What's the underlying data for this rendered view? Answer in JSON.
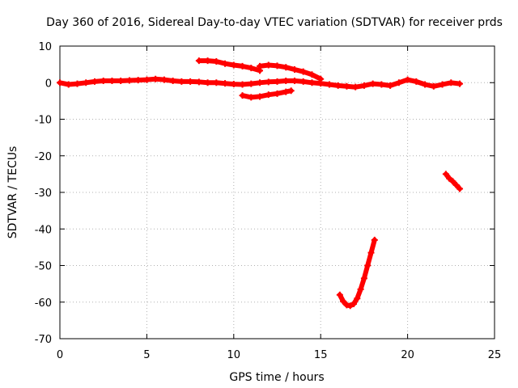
{
  "chart_data": {
    "type": "scatter",
    "title": "Day 360 of 2016, Sidereal Day-to-day VTEC variation (SDTVAR) for receiver prds",
    "xlabel": "GPS time / hours",
    "ylabel": "SDTVAR / TECUs",
    "xlim": [
      0,
      25
    ],
    "ylim": [
      -70,
      10
    ],
    "xticks": [
      0,
      5,
      10,
      15,
      20,
      25
    ],
    "yticks": [
      -70,
      -60,
      -50,
      -40,
      -30,
      -20,
      -10,
      0,
      10
    ],
    "grid": true,
    "legend": "none",
    "marker": "plus",
    "series": [
      {
        "color": "#ff0000",
        "x": [
          0.0,
          0.5,
          1.0,
          1.5,
          2.0,
          2.5,
          3.0,
          3.5,
          4.0,
          4.5,
          5.0,
          5.5,
          6.0,
          6.5,
          7.0,
          7.5,
          8.0,
          8.5,
          9.0,
          9.5,
          10.0,
          10.5,
          11.0,
          11.5,
          12.0,
          12.5,
          13.0,
          13.5,
          14.0,
          14.5,
          15.0,
          15.5,
          16.0,
          16.5,
          17.0,
          17.5,
          18.0,
          18.5,
          19.0,
          19.5,
          20.0,
          20.5,
          21.0,
          21.5,
          22.0,
          22.5,
          23.0
        ],
        "y": [
          0.0,
          -0.5,
          -0.3,
          0.0,
          0.3,
          0.5,
          0.5,
          0.5,
          0.6,
          0.7,
          0.8,
          1.0,
          0.8,
          0.5,
          0.3,
          0.3,
          0.2,
          0.0,
          0.0,
          -0.2,
          -0.4,
          -0.5,
          -0.3,
          0.0,
          0.2,
          0.3,
          0.5,
          0.5,
          0.3,
          0.0,
          -0.2,
          -0.5,
          -0.8,
          -1.0,
          -1.2,
          -0.8,
          -0.3,
          -0.5,
          -0.8,
          0.0,
          0.8,
          0.3,
          -0.5,
          -1.0,
          -0.5,
          0.0,
          -0.3
        ]
      },
      {
        "color": "#ff0000",
        "x": [
          8.0,
          8.5,
          9.0,
          9.5,
          10.0,
          10.5,
          11.0,
          11.5
        ],
        "y": [
          6.0,
          6.0,
          5.8,
          5.2,
          4.8,
          4.5,
          4.0,
          3.3
        ]
      },
      {
        "color": "#ff0000",
        "x": [
          11.5,
          12.0,
          12.5,
          13.0,
          13.5,
          14.0,
          14.5,
          15.0
        ],
        "y": [
          4.5,
          4.8,
          4.6,
          4.2,
          3.6,
          3.0,
          2.2,
          1.0
        ]
      },
      {
        "color": "#ff0000",
        "x": [
          10.5,
          11.0,
          11.5,
          12.0,
          12.5,
          13.0,
          13.3
        ],
        "y": [
          -3.5,
          -4.0,
          -3.8,
          -3.3,
          -3.0,
          -2.5,
          -2.2
        ]
      },
      {
        "color": "#ff0000",
        "x": [
          16.1,
          16.3,
          16.5,
          16.7,
          16.9,
          17.1,
          17.3,
          17.5,
          17.7,
          17.9,
          18.1
        ],
        "y": [
          -58.0,
          -59.8,
          -60.8,
          -61.0,
          -60.5,
          -59.0,
          -56.5,
          -53.5,
          -50.0,
          -46.5,
          -43.0
        ]
      },
      {
        "color": "#ff0000",
        "x": [
          22.2,
          22.4,
          22.6,
          22.8,
          23.0
        ],
        "y": [
          -25.0,
          -26.2,
          -27.0,
          -28.0,
          -29.0
        ]
      }
    ]
  }
}
